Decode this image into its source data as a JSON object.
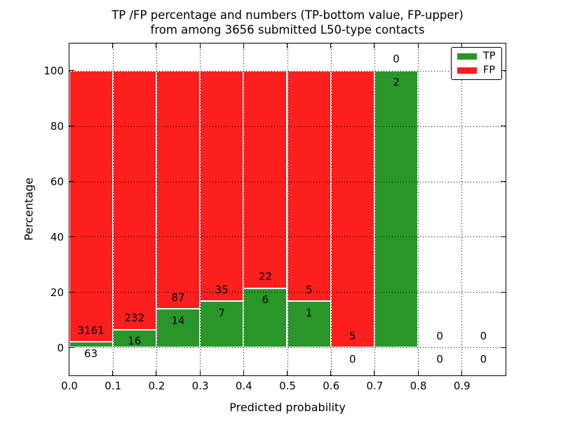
{
  "figure": {
    "title_line1": "TP /FP percentage and numbers (TP-bottom value, FP-upper)",
    "title_line2": "from among 3656 submitted L50-type contacts"
  },
  "chart_data": {
    "type": "bar",
    "stacked": true,
    "title": "TP /FP percentage and numbers (TP-bottom value, FP-upper)\nfrom among 3656 submitted L50-type contacts",
    "xlabel": "Predicted probability",
    "ylabel": "Percentage",
    "xlim": [
      0.0,
      1.0
    ],
    "ylim": [
      -10,
      110
    ],
    "x_ticks": [
      "0.0",
      "0.1",
      "0.2",
      "0.3",
      "0.4",
      "0.5",
      "0.6",
      "0.7",
      "0.8",
      "0.9"
    ],
    "y_ticks": [
      "0",
      "20",
      "40",
      "60",
      "80",
      "100"
    ],
    "grid": true,
    "grid_style": "dotted",
    "total_contacts": 3656,
    "bin_width": 0.1,
    "categories": [
      "0.0-0.1",
      "0.1-0.2",
      "0.2-0.3",
      "0.3-0.4",
      "0.4-0.5",
      "0.5-0.6",
      "0.6-0.7",
      "0.7-0.8",
      "0.8-0.9",
      "0.9-1.0"
    ],
    "bins": [
      {
        "x_start": 0.0,
        "tp": 63,
        "fp": 3161,
        "tp_percent": 1.95
      },
      {
        "x_start": 0.1,
        "tp": 16,
        "fp": 232,
        "tp_percent": 6.45
      },
      {
        "x_start": 0.2,
        "tp": 14,
        "fp": 87,
        "tp_percent": 13.86
      },
      {
        "x_start": 0.3,
        "tp": 7,
        "fp": 35,
        "tp_percent": 16.67
      },
      {
        "x_start": 0.4,
        "tp": 6,
        "fp": 22,
        "tp_percent": 21.43
      },
      {
        "x_start": 0.5,
        "tp": 1,
        "fp": 5,
        "tp_percent": 16.67
      },
      {
        "x_start": 0.6,
        "tp": 0,
        "fp": 5,
        "tp_percent": 0
      },
      {
        "x_start": 0.7,
        "tp": 2,
        "fp": 0,
        "tp_percent": 100
      },
      {
        "x_start": 0.8,
        "tp": 0,
        "fp": 0,
        "tp_percent": null
      },
      {
        "x_start": 0.9,
        "tp": 0,
        "fp": 0,
        "tp_percent": null
      }
    ],
    "series_note": "Green TP bar height = tp/(tp+fp)*100, red FP bar fills up to 100%; numeric labels show raw counts (FP count above, TP count below)",
    "legend": {
      "position": "upper right",
      "entries": [
        {
          "label": "TP",
          "color": "#2a962a"
        },
        {
          "label": "FP",
          "color": "#fd1e1e"
        }
      ]
    },
    "colors": {
      "tp": "#2a962a",
      "fp": "#fd1e1e",
      "axis": "#000000",
      "background": "#ffffff"
    }
  }
}
